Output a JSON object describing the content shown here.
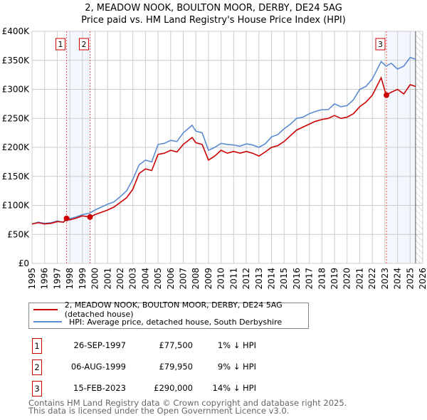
{
  "chart_data": {
    "type": "line",
    "title": "2, MEADOW NOOK, BOULTON MOOR, DERBY, DE24 5AG",
    "subtitle": "Price paid vs. HM Land Registry's House Price Index (HPI)",
    "xlim": [
      1995,
      2026
    ],
    "ylim": [
      0,
      400000
    ],
    "x_ticks": [
      "1995",
      "1996",
      "1997",
      "1998",
      "1999",
      "2000",
      "2001",
      "2002",
      "2003",
      "2004",
      "2005",
      "2006",
      "2007",
      "2008",
      "2009",
      "2010",
      "2011",
      "2012",
      "2013",
      "2014",
      "2015",
      "2016",
      "2017",
      "2018",
      "2019",
      "2020",
      "2021",
      "2022",
      "2023",
      "2024",
      "2025",
      "2026"
    ],
    "y_ticks": [
      {
        "v": 0,
        "label": "£0"
      },
      {
        "v": 50000,
        "label": "£50K"
      },
      {
        "v": 100000,
        "label": "£100K"
      },
      {
        "v": 150000,
        "label": "£150K"
      },
      {
        "v": 200000,
        "label": "£200K"
      },
      {
        "v": 250000,
        "label": "£250K"
      },
      {
        "v": 300000,
        "label": "£300K"
      },
      {
        "v": 350000,
        "label": "£350K"
      },
      {
        "v": 400000,
        "label": "£400K"
      }
    ],
    "grid": true,
    "series": [
      {
        "name": "2, MEADOW NOOK, BOULTON MOOR, DERBY, DE24 5AG (detached house)",
        "color": "#cc0000",
        "x": [
          1995,
          1995.5,
          1996,
          1996.5,
          1997,
          1997.5,
          1997.74,
          1998,
          1998.5,
          1999,
          1999.6,
          2000,
          2000.5,
          2001,
          2001.5,
          2002,
          2002.5,
          2003,
          2003.5,
          2004,
          2004.5,
          2005,
          2005.5,
          2006,
          2006.5,
          2007,
          2007.7,
          2008,
          2008.5,
          2009,
          2009.5,
          2010,
          2010.5,
          2011,
          2011.5,
          2012,
          2012.5,
          2013,
          2013.5,
          2014,
          2014.5,
          2015,
          2015.5,
          2016,
          2016.5,
          2017,
          2017.5,
          2018,
          2018.5,
          2019,
          2019.5,
          2020,
          2020.5,
          2021,
          2021.5,
          2022,
          2022.7,
          2023.1,
          2023.5,
          2024,
          2024.5,
          2025,
          2025.43
        ],
        "y": [
          68000,
          70000,
          68000,
          69000,
          72000,
          71000,
          77500,
          75000,
          78000,
          82000,
          80000,
          84000,
          88000,
          92000,
          97000,
          105000,
          113000,
          128000,
          155000,
          163000,
          160000,
          188000,
          190000,
          195000,
          192000,
          205000,
          217000,
          208000,
          205000,
          178000,
          185000,
          195000,
          190000,
          193000,
          190000,
          193000,
          190000,
          185000,
          192000,
          200000,
          203000,
          210000,
          220000,
          230000,
          235000,
          240000,
          245000,
          248000,
          250000,
          255000,
          250000,
          252000,
          258000,
          270000,
          278000,
          290000,
          320000,
          290000,
          295000,
          300000,
          292000,
          308000,
          305000
        ]
      },
      {
        "name": "HPI: Average price, detached house, South Derbyshire",
        "color": "#5b8bd0",
        "x": [
          1995,
          1995.5,
          1996,
          1996.5,
          1997,
          1997.5,
          1997.74,
          1998,
          1998.5,
          1999,
          1999.6,
          2000,
          2000.5,
          2001,
          2001.5,
          2002,
          2002.5,
          2003,
          2003.5,
          2004,
          2004.5,
          2005,
          2005.5,
          2006,
          2006.5,
          2007,
          2007.7,
          2008,
          2008.5,
          2009,
          2009.5,
          2010,
          2010.5,
          2011,
          2011.5,
          2012,
          2012.5,
          2013,
          2013.5,
          2014,
          2014.5,
          2015,
          2015.5,
          2016,
          2016.5,
          2017,
          2017.5,
          2018,
          2018.5,
          2019,
          2019.5,
          2020,
          2020.5,
          2021,
          2021.5,
          2022,
          2022.7,
          2023.1,
          2023.5,
          2024,
          2024.5,
          2025,
          2025.43
        ],
        "y": [
          68000,
          71000,
          69000,
          70000,
          73000,
          71000,
          78000,
          77000,
          80000,
          84000,
          87000,
          92000,
          97000,
          102000,
          106000,
          115000,
          125000,
          145000,
          170000,
          178000,
          175000,
          205000,
          207000,
          212000,
          210000,
          225000,
          238000,
          228000,
          225000,
          195000,
          200000,
          207000,
          205000,
          204000,
          202000,
          206000,
          204000,
          200000,
          206000,
          218000,
          222000,
          232000,
          240000,
          250000,
          252000,
          258000,
          262000,
          265000,
          265000,
          275000,
          270000,
          272000,
          282000,
          300000,
          305000,
          318000,
          348000,
          340000,
          345000,
          335000,
          340000,
          355000,
          352000
        ]
      }
    ],
    "sales": [
      {
        "label": "1",
        "x": 1997.74,
        "y": 77500
      },
      {
        "label": "2",
        "x": 1999.6,
        "y": 79950
      },
      {
        "label": "3",
        "x": 2023.12,
        "y": 290000
      }
    ],
    "legend_position": "bottom"
  },
  "legend": {
    "property": "2, MEADOW NOOK, BOULTON MOOR, DERBY, DE24 5AG (detached house)",
    "hpi": "HPI: Average price, detached house, South Derbyshire"
  },
  "transactions": [
    {
      "num": "1",
      "date": "26-SEP-1997",
      "price": "£77,500",
      "hpi": "1% ↓ HPI"
    },
    {
      "num": "2",
      "date": "06-AUG-1999",
      "price": "£79,950",
      "hpi": "9% ↓ HPI"
    },
    {
      "num": "3",
      "date": "15-FEB-2023",
      "price": "£290,000",
      "hpi": "14% ↓ HPI"
    }
  ],
  "footer": {
    "line1": "Contains HM Land Registry data © Crown copyright and database right 2025.",
    "line2": "This data is licensed under the Open Government Licence v3.0."
  }
}
